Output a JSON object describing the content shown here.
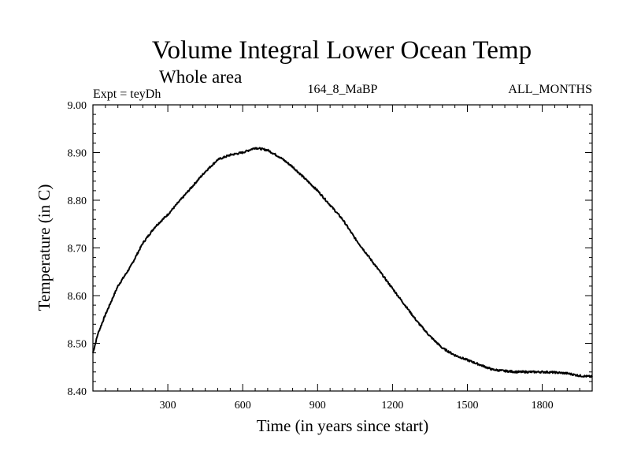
{
  "chart_data": {
    "type": "line",
    "title": "Volume Integral Lower Ocean Temp",
    "subtitle": "Whole area",
    "annotations": {
      "left": "Expt = teyDh",
      "center": "164_8_MaBP",
      "right": "ALL_MONTHS"
    },
    "xlabel": "Time (in years since start)",
    "ylabel": "Temperature (in C)",
    "xlim": [
      0,
      2000
    ],
    "ylim": [
      8.4,
      9.0
    ],
    "xticks": [
      300,
      600,
      900,
      1200,
      1500,
      1800
    ],
    "yticks": [
      8.4,
      8.5,
      8.6,
      8.7,
      8.8,
      8.9,
      9.0
    ],
    "ytick_labels": [
      "8.40",
      "8.50",
      "8.60",
      "8.70",
      "8.80",
      "8.90",
      "9.00"
    ],
    "grid": false,
    "series": [
      {
        "name": "Lower Ocean Temp",
        "x": [
          0,
          20,
          50,
          100,
          150,
          200,
          250,
          300,
          350,
          400,
          450,
          500,
          550,
          600,
          650,
          700,
          750,
          800,
          850,
          900,
          950,
          1000,
          1050,
          1100,
          1150,
          1200,
          1250,
          1300,
          1350,
          1400,
          1450,
          1500,
          1550,
          1600,
          1650,
          1700,
          1750,
          1800,
          1850,
          1900,
          1950,
          2000
        ],
        "y": [
          8.48,
          8.52,
          8.56,
          8.62,
          8.66,
          8.71,
          8.745,
          8.77,
          8.8,
          8.83,
          8.86,
          8.885,
          8.895,
          8.9,
          8.91,
          8.905,
          8.89,
          8.87,
          8.845,
          8.82,
          8.79,
          8.76,
          8.72,
          8.685,
          8.65,
          8.615,
          8.58,
          8.545,
          8.515,
          8.49,
          8.475,
          8.465,
          8.455,
          8.445,
          8.442,
          8.44,
          8.44,
          8.44,
          8.439,
          8.437,
          8.432,
          8.43
        ]
      }
    ]
  }
}
